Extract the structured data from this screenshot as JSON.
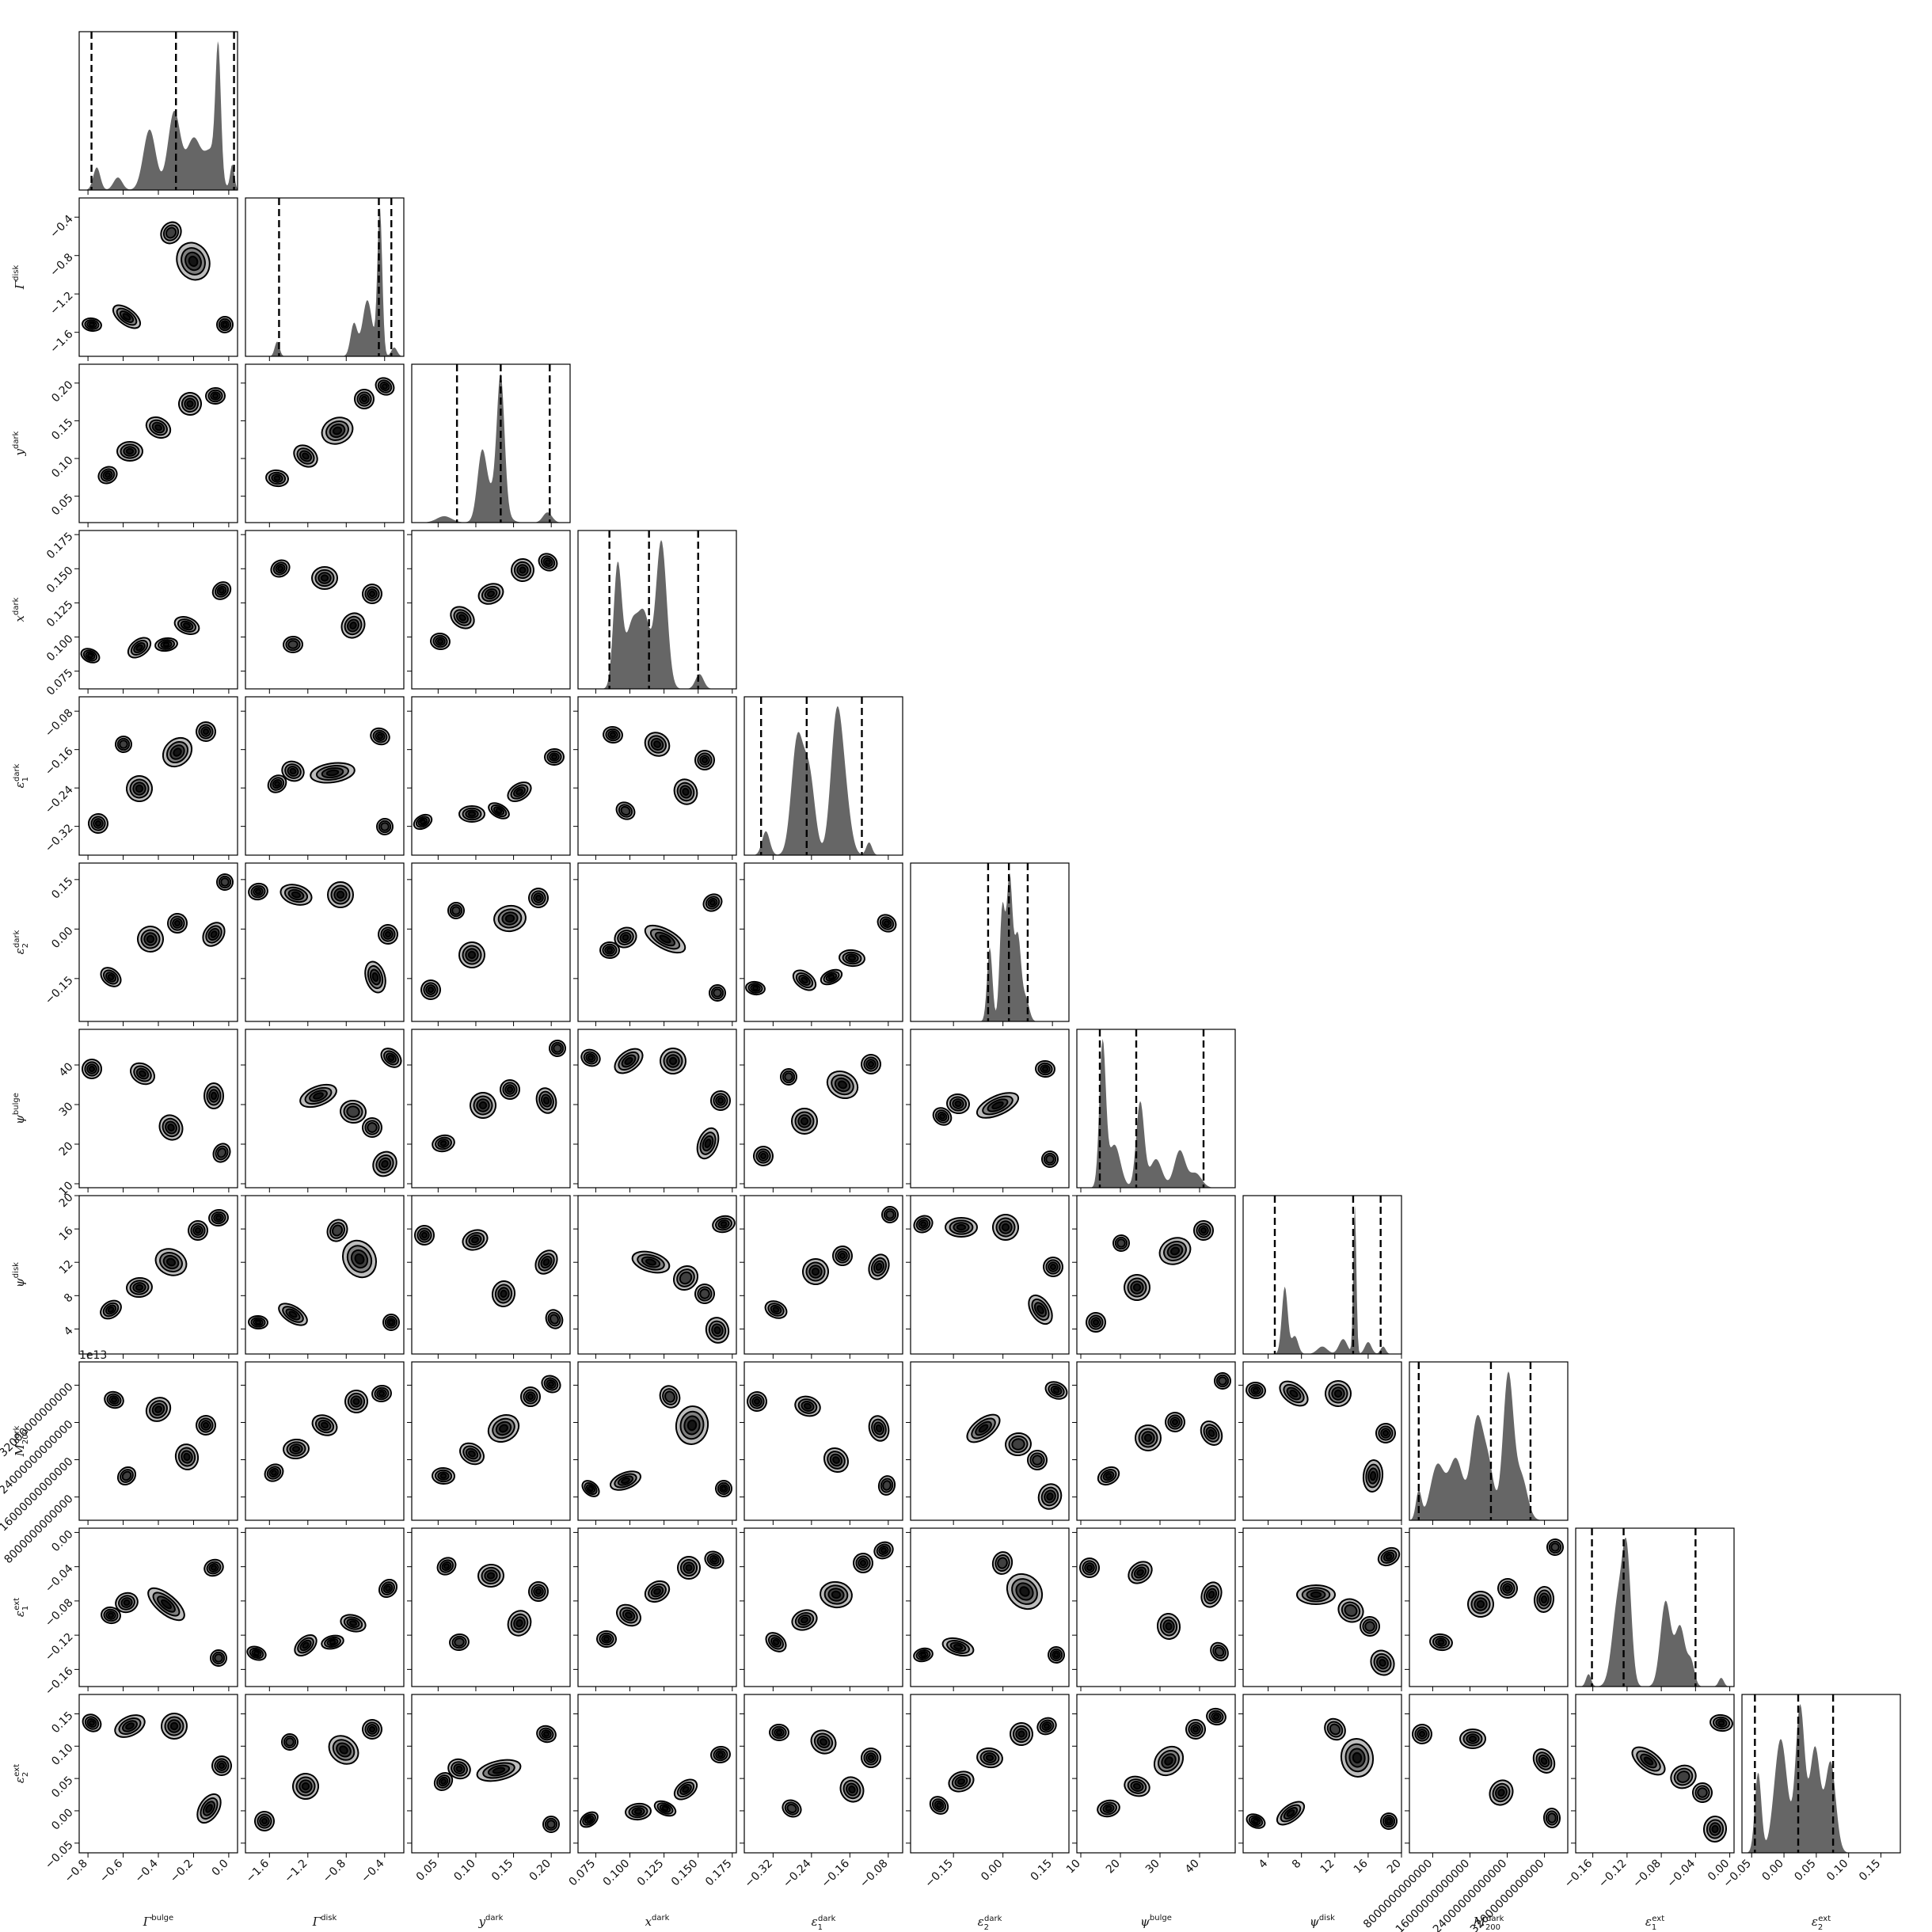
{
  "chart_data": {
    "type": "corner",
    "title": "",
    "colors": {
      "fill": "#666666",
      "contour_line": "#000000",
      "contour_light": "#bdbdbd",
      "contour_mid": "#808080",
      "contour_dark": "#404040",
      "contour_core": "#141414"
    },
    "parameters": [
      {
        "id": "bulge",
        "label": "Γ",
        "sup": "bulge",
        "sub": "",
        "range": [
          -0.85,
          0.05
        ],
        "ticks": [
          -0.8,
          -0.6,
          -0.4,
          -0.2,
          0.0
        ],
        "tick_labels": [
          "−0.8",
          "−0.6",
          "−0.4",
          "−0.2",
          "0.0"
        ],
        "quantiles": [
          -0.78,
          -0.3,
          0.03
        ],
        "peaks": [
          [
            -0.75,
            0.18,
            0.02
          ],
          [
            -0.63,
            0.1,
            0.025
          ],
          [
            -0.45,
            0.48,
            0.035
          ],
          [
            -0.31,
            0.62,
            0.035
          ],
          [
            -0.2,
            0.4,
            0.04
          ],
          [
            -0.06,
            1.0,
            0.015
          ],
          [
            -0.1,
            0.3,
            0.04
          ],
          [
            0.02,
            0.2,
            0.012
          ]
        ]
      },
      {
        "id": "disk",
        "label": "Γ",
        "sup": "disk",
        "sub": "",
        "range": [
          -1.85,
          -0.2
        ],
        "ticks": [
          -1.6,
          -1.2,
          -0.8,
          -0.4
        ],
        "tick_labels": [
          "−1.6",
          "−1.2",
          "−0.8",
          "−0.4"
        ],
        "quantiles": [
          -1.5,
          -0.46,
          -0.33
        ],
        "peaks": [
          [
            -1.52,
            0.1,
            0.025
          ],
          [
            -0.72,
            0.22,
            0.035
          ],
          [
            -0.58,
            0.38,
            0.05
          ],
          [
            -0.45,
            1.0,
            0.025
          ],
          [
            -0.3,
            0.06,
            0.03
          ]
        ]
      },
      {
        "id": "ydark",
        "label": "y",
        "sup": "dark",
        "sub": "",
        "range": [
          0.015,
          0.225
        ],
        "ticks": [
          0.05,
          0.1,
          0.15,
          0.2
        ],
        "tick_labels": [
          "0.05",
          "0.10",
          "0.15",
          "0.20"
        ],
        "quantiles": [
          0.075,
          0.133,
          0.198
        ],
        "peaks": [
          [
            0.058,
            0.05,
            0.01
          ],
          [
            0.108,
            0.48,
            0.006
          ],
          [
            0.133,
            1.0,
            0.005
          ],
          [
            0.124,
            0.22,
            0.012
          ],
          [
            0.195,
            0.08,
            0.006
          ]
        ]
      },
      {
        "id": "xdark",
        "label": "x",
        "sup": "dark",
        "sub": "",
        "range": [
          0.062,
          0.178
        ],
        "ticks": [
          0.075,
          0.1,
          0.125,
          0.15,
          0.175
        ],
        "tick_labels": [
          "0.075",
          "0.100",
          "0.125",
          "0.150",
          "0.175"
        ],
        "quantiles": [
          0.085,
          0.114,
          0.15
        ],
        "peaks": [
          [
            0.091,
            0.82,
            0.003
          ],
          [
            0.102,
            0.45,
            0.005
          ],
          [
            0.111,
            0.42,
            0.004
          ],
          [
            0.123,
            1.0,
            0.004
          ],
          [
            0.151,
            0.1,
            0.003
          ]
        ]
      },
      {
        "id": "e1dark",
        "label": "ε",
        "sup": "dark",
        "sub": "1",
        "range": [
          -0.38,
          -0.05
        ],
        "ticks": [
          -0.32,
          -0.24,
          -0.16,
          -0.08
        ],
        "tick_labels": [
          "−0.32",
          "−0.24",
          "−0.16",
          "−0.08"
        ],
        "quantiles": [
          -0.345,
          -0.25,
          -0.135
        ],
        "peaks": [
          [
            -0.335,
            0.15,
            0.008
          ],
          [
            -0.27,
            0.7,
            0.012
          ],
          [
            -0.245,
            0.5,
            0.012
          ],
          [
            -0.188,
            0.82,
            0.012
          ],
          [
            -0.17,
            0.3,
            0.012
          ],
          [
            -0.12,
            0.08,
            0.006
          ]
        ]
      },
      {
        "id": "e2dark",
        "label": "ε",
        "sup": "dark",
        "sub": "2",
        "range": [
          -0.28,
          0.2
        ],
        "ticks": [
          -0.15,
          0.0,
          0.15
        ],
        "tick_labels": [
          "−0.15",
          "0.00",
          "0.15"
        ],
        "quantiles": [
          -0.045,
          0.018,
          0.075
        ],
        "peaks": [
          [
            -0.04,
            0.52,
            0.008
          ],
          [
            -0.002,
            0.78,
            0.008
          ],
          [
            0.02,
            1.0,
            0.009
          ],
          [
            0.045,
            0.6,
            0.01
          ],
          [
            0.07,
            0.15,
            0.01
          ]
        ]
      },
      {
        "id": "psibulge",
        "label": "ψ",
        "sup": "bulge",
        "sub": "",
        "range": [
          9,
          49
        ],
        "ticks": [
          10,
          20,
          30,
          40
        ],
        "tick_labels": [
          "10",
          "20",
          "30",
          "40"
        ],
        "quantiles": [
          14.8,
          24.0,
          41.0
        ],
        "peaks": [
          [
            15.5,
            1.0,
            0.8
          ],
          [
            18.5,
            0.3,
            1.5
          ],
          [
            25.0,
            0.6,
            1.0
          ],
          [
            29.0,
            0.2,
            1.5
          ],
          [
            35.0,
            0.26,
            1.4
          ],
          [
            39.0,
            0.1,
            1.5
          ]
        ]
      },
      {
        "id": "psidisk",
        "label": "ψ",
        "sup": "disk",
        "sub": "",
        "range": [
          1,
          20
        ],
        "ticks": [
          4,
          8,
          12,
          16,
          20
        ],
        "tick_labels": [
          "4",
          "8",
          "12",
          "16",
          "20"
        ],
        "quantiles": [
          4.8,
          14.2,
          17.5
        ],
        "peaks": [
          [
            6.0,
            0.45,
            0.35
          ],
          [
            7.2,
            0.12,
            0.4
          ],
          [
            10.5,
            0.05,
            0.6
          ],
          [
            13.0,
            0.1,
            0.5
          ],
          [
            14.4,
            1.0,
            0.18
          ],
          [
            16.0,
            0.08,
            0.4
          ],
          [
            17.8,
            0.05,
            0.3
          ]
        ]
      },
      {
        "id": "mdark",
        "label": "M",
        "sup": "dark",
        "sub": "200",
        "range": [
          3000000000000,
          37000000000000
        ],
        "ticks": [
          8000000000000,
          16000000000000,
          24000000000000,
          32000000000000
        ],
        "tick_labels": [
          "8000000000000",
          "16000000000000",
          "24000000000000",
          "32000000000000"
        ],
        "offset_label": "1e13",
        "quantiles": [
          5000000000000,
          20500000000000,
          29000000000000
        ],
        "peaks": [
          [
            5000000000000,
            0.2,
            600000000000
          ],
          [
            9000000000000,
            0.38,
            1500000000000
          ],
          [
            13000000000000,
            0.42,
            1500000000000
          ],
          [
            17500000000000,
            0.68,
            1300000000000
          ],
          [
            20000000000000,
            0.35,
            1200000000000
          ],
          [
            24200000000000,
            1.0,
            1100000000000
          ],
          [
            27000000000000,
            0.3,
            1300000000000
          ]
        ]
      },
      {
        "id": "e1ext",
        "label": "ε",
        "sup": "ext",
        "sub": "1",
        "range": [
          -0.18,
          0.005
        ],
        "ticks": [
          -0.16,
          -0.12,
          -0.08,
          -0.04,
          0.0
        ],
        "tick_labels": [
          "−0.16",
          "−0.12",
          "−0.08",
          "−0.04",
          "0.00"
        ],
        "quantiles": [
          -0.161,
          -0.124,
          -0.04
        ],
        "peaks": [
          [
            -0.165,
            0.1,
            0.003
          ],
          [
            -0.13,
            0.7,
            0.007
          ],
          [
            -0.12,
            0.9,
            0.005
          ],
          [
            -0.075,
            0.68,
            0.006
          ],
          [
            -0.058,
            0.48,
            0.006
          ],
          [
            -0.045,
            0.18,
            0.004
          ],
          [
            -0.01,
            0.07,
            0.003
          ]
        ]
      },
      {
        "id": "e2ext",
        "label": "ε",
        "sup": "ext",
        "sub": "2",
        "range": [
          -0.065,
          0.18
        ],
        "ticks": [
          -0.05,
          0.0,
          0.05,
          0.1,
          0.15
        ],
        "tick_labels": [
          "−0.05",
          "0.00",
          "0.05",
          "0.10",
          "0.15"
        ],
        "quantiles": [
          -0.045,
          0.022,
          0.076
        ],
        "peaks": [
          [
            -0.04,
            0.55,
            0.005
          ],
          [
            -0.005,
            0.78,
            0.01
          ],
          [
            0.025,
            1.0,
            0.007
          ],
          [
            0.048,
            0.72,
            0.008
          ],
          [
            0.072,
            0.62,
            0.008
          ]
        ]
      }
    ],
    "pair_blobs": [
      [
        [
          0.92,
          0.18,
          0.07,
          0.05,
          0.9
        ],
        [
          0.46,
          0.42,
          0.12,
          0.06,
          0.95
        ],
        [
          0.68,
          0.52,
          0.08,
          0.07,
          0.7
        ],
        [
          0.88,
          0.85,
          0.07,
          0.08,
          0.85
        ],
        [
          0.8,
          0.62,
          0.06,
          0.06,
          0.5
        ]
      ],
      [
        [
          0.3,
          0.47,
          0.07,
          0.06,
          0.9
        ],
        [
          0.2,
          0.55,
          0.06,
          0.05,
          0.75
        ],
        [
          0.55,
          0.48,
          0.14,
          0.06,
          0.95
        ],
        [
          0.85,
          0.25,
          0.06,
          0.05,
          0.9
        ],
        [
          0.88,
          0.82,
          0.05,
          0.05,
          0.6
        ]
      ],
      [
        [
          0.2,
          0.72,
          0.07,
          0.05,
          0.85
        ],
        [
          0.38,
          0.58,
          0.08,
          0.06,
          0.9
        ],
        [
          0.58,
          0.42,
          0.1,
          0.08,
          0.95
        ],
        [
          0.75,
          0.22,
          0.06,
          0.06,
          0.85
        ],
        [
          0.88,
          0.14,
          0.06,
          0.05,
          0.8
        ]
      ],
      [
        [
          0.2,
          0.72,
          0.07,
          0.05,
          0.85
        ],
        [
          0.45,
          0.48,
          0.08,
          0.08,
          0.9
        ],
        [
          0.62,
          0.38,
          0.06,
          0.06,
          0.85
        ],
        [
          0.85,
          0.45,
          0.06,
          0.08,
          0.9
        ],
        [
          0.92,
          0.12,
          0.05,
          0.05,
          0.7
        ]
      ],
      [
        [
          0.07,
          0.79,
          0.06,
          0.04,
          0.8
        ],
        [
          0.38,
          0.74,
          0.08,
          0.05,
          0.9
        ],
        [
          0.55,
          0.72,
          0.07,
          0.04,
          0.85
        ],
        [
          0.68,
          0.6,
          0.08,
          0.05,
          0.9
        ],
        [
          0.9,
          0.38,
          0.06,
          0.05,
          0.85
        ]
      ],
      [
        [
          0.08,
          0.8,
          0.06,
          0.04,
          0.85
        ],
        [
          0.3,
          0.75,
          0.1,
          0.05,
          0.9
        ],
        [
          0.72,
          0.4,
          0.1,
          0.12,
          0.95
        ],
        [
          0.92,
          0.8,
          0.05,
          0.05,
          0.85
        ],
        [
          0.58,
          0.22,
          0.06,
          0.07,
          0.6
        ]
      ],
      [
        [
          0.08,
          0.18,
          0.06,
          0.05,
          0.85
        ],
        [
          0.32,
          0.2,
          0.1,
          0.06,
          0.9
        ],
        [
          0.6,
          0.2,
          0.08,
          0.08,
          0.85
        ],
        [
          0.82,
          0.72,
          0.06,
          0.1,
          0.9
        ],
        [
          0.9,
          0.45,
          0.06,
          0.06,
          0.75
        ]
      ],
      [
        [
          0.22,
          0.24,
          0.06,
          0.05,
          0.85
        ],
        [
          0.5,
          0.3,
          0.08,
          0.07,
          0.9
        ],
        [
          0.68,
          0.6,
          0.07,
          0.08,
          0.85
        ],
        [
          0.8,
          0.4,
          0.06,
          0.06,
          0.8
        ],
        [
          0.3,
          0.72,
          0.06,
          0.05,
          0.7
        ]
      ],
      [
        [
          0.08,
          0.25,
          0.06,
          0.06,
          0.85
        ],
        [
          0.4,
          0.28,
          0.08,
          0.06,
          0.9
        ],
        [
          0.58,
          0.62,
          0.07,
          0.08,
          0.9
        ],
        [
          0.85,
          0.42,
          0.06,
          0.08,
          0.85
        ],
        [
          0.9,
          0.78,
          0.05,
          0.06,
          0.7
        ]
      ],
      [
        [
          0.12,
          0.8,
          0.06,
          0.06,
          0.85
        ],
        [
          0.38,
          0.58,
          0.08,
          0.08,
          0.9
        ],
        [
          0.62,
          0.35,
          0.1,
          0.08,
          0.95
        ],
        [
          0.8,
          0.22,
          0.06,
          0.06,
          0.85
        ],
        [
          0.28,
          0.3,
          0.05,
          0.05,
          0.6
        ]
      ],
      [
        [
          0.18,
          0.7,
          0.06,
          0.05,
          0.85
        ],
        [
          0.32,
          0.55,
          0.08,
          0.06,
          0.9
        ],
        [
          0.5,
          0.4,
          0.08,
          0.06,
          0.9
        ],
        [
          0.7,
          0.25,
          0.07,
          0.07,
          0.9
        ],
        [
          0.86,
          0.2,
          0.06,
          0.05,
          0.8
        ]
      ]
    ]
  }
}
